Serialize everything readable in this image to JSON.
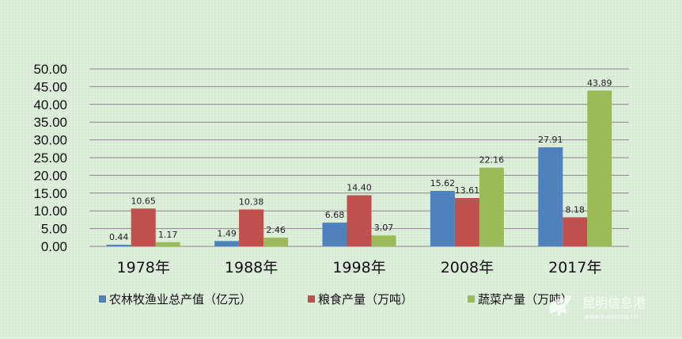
{
  "chart_data": {
    "type": "bar",
    "categories": [
      "1978年",
      "1988年",
      "1998年",
      "2008年",
      "2017年"
    ],
    "series": [
      {
        "name": "农林牧渔业总产值（亿元）",
        "color": "#4f81bd",
        "values": [
          0.44,
          1.49,
          6.68,
          15.62,
          27.91
        ]
      },
      {
        "name": "粮食产量（万吨）",
        "color": "#c0504d",
        "values": [
          10.65,
          10.38,
          14.4,
          13.61,
          8.18
        ]
      },
      {
        "name": "蔬菜产量（万吨）",
        "color": "#9bbb59",
        "values": [
          1.17,
          2.46,
          3.07,
          22.16,
          43.89
        ]
      }
    ],
    "ylim": [
      0,
      50
    ],
    "yticks": [
      "0.00",
      "5.00",
      "10.00",
      "15.00",
      "20.00",
      "25.00",
      "30.00",
      "35.00",
      "40.00",
      "45.00",
      "50.00"
    ],
    "grid": true,
    "legend_position": "bottom"
  },
  "watermark": {
    "title": "昆明信息港",
    "url": "www.kunming.cn",
    "icon": "horse-logo-icon"
  }
}
